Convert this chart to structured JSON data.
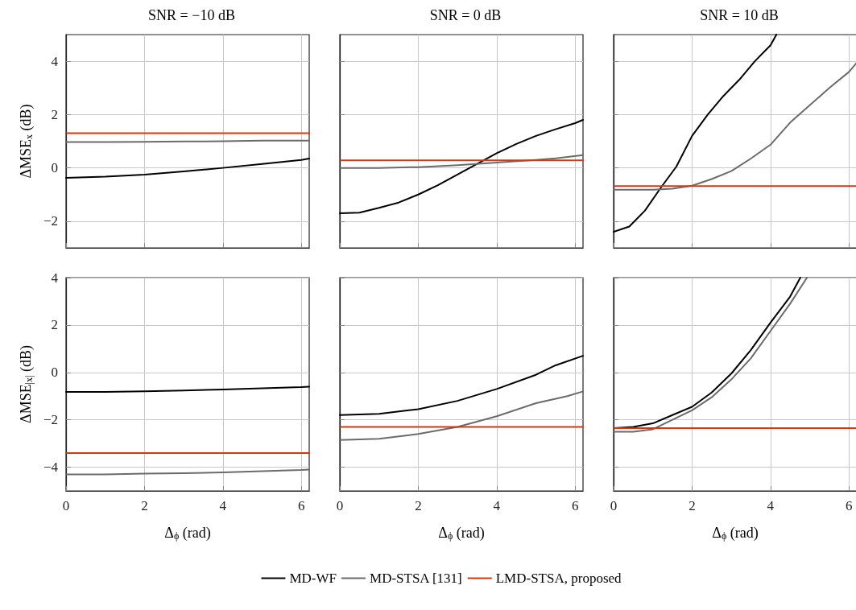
{
  "chart_data": [
    {
      "type": "line",
      "title": "SNR = −10 dB",
      "ylabel": "ΔMSE$_{x}$ (dB)",
      "xlim": [
        0,
        6.2
      ],
      "xticks": [
        0,
        2,
        4,
        6
      ],
      "ylim": [
        -3,
        5
      ],
      "yticks": [
        -2,
        0,
        2,
        4
      ],
      "grid": true,
      "tick_labels": "y",
      "marker": "none",
      "line_style": "solid",
      "series": [
        {
          "color": "#000000",
          "x": [
            0,
            1,
            2,
            3,
            4,
            5,
            6,
            6.2
          ],
          "values": [
            -0.37,
            -0.33,
            -0.25,
            -0.13,
            0,
            0.15,
            0.3,
            0.35
          ]
        },
        {
          "color": "#6b6b6b",
          "x": [
            0,
            1,
            2,
            3,
            4,
            5,
            6,
            6.2
          ],
          "values": [
            0.97,
            0.97,
            0.98,
            0.99,
            1.0,
            1.02,
            1.02,
            1.02
          ]
        },
        {
          "color": "#d6380c",
          "x": [
            0,
            1,
            2,
            3,
            4,
            5,
            6,
            6.2
          ],
          "values": [
            1.3,
            1.3,
            1.3,
            1.3,
            1.3,
            1.3,
            1.3,
            1.3
          ]
        }
      ]
    },
    {
      "type": "line",
      "title": "SNR = 0 dB",
      "xlim": [
        0,
        6.2
      ],
      "xticks": [
        0,
        2,
        4,
        6
      ],
      "ylim": [
        -3,
        5
      ],
      "yticks": [
        -2,
        0,
        2,
        4
      ],
      "grid": true,
      "tick_labels": false,
      "marker": "none",
      "line_style": "solid",
      "series": [
        {
          "color": "#000000",
          "x": [
            0,
            0.5,
            1,
            1.5,
            2,
            2.5,
            3,
            3.5,
            4,
            4.5,
            5,
            5.5,
            6,
            6.2
          ],
          "values": [
            -1.7,
            -1.68,
            -1.5,
            -1.3,
            -1.0,
            -0.65,
            -0.25,
            0.15,
            0.55,
            0.9,
            1.2,
            1.45,
            1.68,
            1.8
          ]
        },
        {
          "color": "#6b6b6b",
          "x": [
            0,
            1,
            2,
            3,
            4,
            5,
            5.5,
            6.2
          ],
          "values": [
            0,
            0,
            0.03,
            0.1,
            0.2,
            0.3,
            0.36,
            0.48
          ]
        },
        {
          "color": "#d6380c",
          "x": [
            0,
            1,
            2,
            3,
            4,
            5,
            6,
            6.2
          ],
          "values": [
            0.28,
            0.28,
            0.28,
            0.28,
            0.28,
            0.28,
            0.28,
            0.28
          ]
        }
      ]
    },
    {
      "type": "line",
      "title": "SNR = 10 dB",
      "xlim": [
        0,
        6.2
      ],
      "xticks": [
        0,
        2,
        4,
        6
      ],
      "ylim": [
        -3,
        5
      ],
      "yticks": [
        -2,
        0,
        2,
        4
      ],
      "grid": true,
      "tick_labels": false,
      "marker": "none",
      "line_style": "solid",
      "series": [
        {
          "color": "#000000",
          "x": [
            0,
            0.4,
            0.8,
            1.2,
            1.6,
            2,
            2.4,
            2.8,
            3.2,
            3.6,
            4,
            4.15
          ],
          "values": [
            -2.4,
            -2.2,
            -1.6,
            -0.75,
            0.05,
            1.2,
            2.0,
            2.7,
            3.3,
            4.0,
            4.6,
            5
          ]
        },
        {
          "color": "#6b6b6b",
          "x": [
            0,
            1,
            1.5,
            2,
            2.5,
            3,
            3.5,
            4,
            4.5,
            5,
            5.5,
            6,
            6.2
          ],
          "values": [
            -0.82,
            -0.82,
            -0.78,
            -0.67,
            -0.42,
            -0.12,
            0.35,
            0.87,
            1.7,
            2.35,
            3.0,
            3.6,
            3.95
          ]
        },
        {
          "color": "#d6380c",
          "x": [
            0,
            1,
            2,
            3,
            4,
            5,
            6,
            6.2
          ],
          "values": [
            -0.68,
            -0.68,
            -0.68,
            -0.68,
            -0.68,
            -0.68,
            -0.68,
            -0.68
          ]
        }
      ]
    },
    {
      "type": "line",
      "ylabel": "ΔMSE$_{|x|}$ (dB)",
      "xlabel": "Δ$_{ϕ}$ (rad)",
      "xlim": [
        0,
        6.2
      ],
      "xticks": [
        0,
        2,
        4,
        6
      ],
      "ylim": [
        -5,
        4
      ],
      "yticks": [
        -4,
        -2,
        0,
        2,
        4
      ],
      "grid": true,
      "marker": "none",
      "line_style": "solid",
      "series": [
        {
          "color": "#000000",
          "x": [
            0,
            1,
            2,
            3,
            4,
            5,
            6,
            6.2
          ],
          "values": [
            -0.82,
            -0.82,
            -0.8,
            -0.76,
            -0.72,
            -0.67,
            -0.62,
            -0.6
          ]
        },
        {
          "color": "#6b6b6b",
          "x": [
            0,
            1,
            2,
            3,
            4,
            5,
            6,
            6.2
          ],
          "values": [
            -4.3,
            -4.3,
            -4.27,
            -4.25,
            -4.22,
            -4.17,
            -4.12,
            -4.1
          ]
        },
        {
          "color": "#d6380c",
          "x": [
            0,
            1,
            2,
            3,
            4,
            5,
            6,
            6.2
          ],
          "values": [
            -3.4,
            -3.4,
            -3.4,
            -3.4,
            -3.4,
            -3.4,
            -3.4,
            -3.4
          ]
        }
      ]
    },
    {
      "type": "line",
      "xlabel": "Δ$_{ϕ}$ (rad)",
      "xlim": [
        0,
        6.2
      ],
      "xticks": [
        0,
        2,
        4,
        6
      ],
      "ylim": [
        -5,
        4
      ],
      "yticks": [
        -4,
        -2,
        0,
        2,
        4
      ],
      "grid": true,
      "tick_labels": "x",
      "marker": "none",
      "line_style": "solid",
      "legend": "bottom",
      "series": [
        {
          "name": "MD-WF",
          "color": "#000000",
          "x": [
            0,
            1,
            2,
            3,
            4,
            5,
            5.5,
            6.2
          ],
          "values": [
            -1.8,
            -1.75,
            -1.55,
            -1.2,
            -0.7,
            -0.1,
            0.3,
            0.7
          ]
        },
        {
          "name": "MD-STSA [131]",
          "color": "#6b6b6b",
          "x": [
            0,
            1,
            2,
            3,
            4,
            5,
            5.8,
            6.2
          ],
          "values": [
            -2.85,
            -2.8,
            -2.6,
            -2.3,
            -1.85,
            -1.3,
            -1.0,
            -0.8
          ]
        },
        {
          "name": "LMD-STSA, proposed",
          "color": "#d6380c",
          "x": [
            0,
            1,
            2,
            3,
            4,
            5,
            6,
            6.2
          ],
          "values": [
            -2.3,
            -2.3,
            -2.3,
            -2.3,
            -2.3,
            -2.3,
            -2.3,
            -2.3
          ]
        }
      ]
    },
    {
      "type": "line",
      "xlabel": "Δ$_{ϕ}$ (rad)",
      "xlim": [
        0,
        6.2
      ],
      "xticks": [
        0,
        2,
        4,
        6
      ],
      "ylim": [
        -5,
        4
      ],
      "yticks": [
        -4,
        -2,
        0,
        2,
        4
      ],
      "grid": true,
      "tick_labels": "x",
      "marker": "none",
      "line_style": "solid",
      "series": [
        {
          "color": "#000000",
          "x": [
            0,
            0.5,
            1,
            1.5,
            2,
            2.5,
            3,
            3.5,
            4,
            4.5,
            4.76
          ],
          "values": [
            -2.35,
            -2.3,
            -2.15,
            -1.8,
            -1.45,
            -0.85,
            -0.05,
            0.95,
            2.1,
            3.2,
            4
          ]
        },
        {
          "color": "#6b6b6b",
          "x": [
            0,
            0.5,
            1,
            1.5,
            2,
            2.5,
            3,
            3.5,
            4,
            4.5,
            4.93
          ],
          "values": [
            -2.5,
            -2.5,
            -2.4,
            -2.0,
            -1.6,
            -1.05,
            -0.3,
            0.6,
            1.75,
            2.9,
            4
          ]
        },
        {
          "color": "#d6380c",
          "x": [
            0,
            1,
            2,
            3,
            4,
            5,
            6,
            6.2
          ],
          "values": [
            -2.35,
            -2.35,
            -2.35,
            -2.35,
            -2.35,
            -2.35,
            -2.35,
            -2.35
          ]
        }
      ]
    }
  ]
}
